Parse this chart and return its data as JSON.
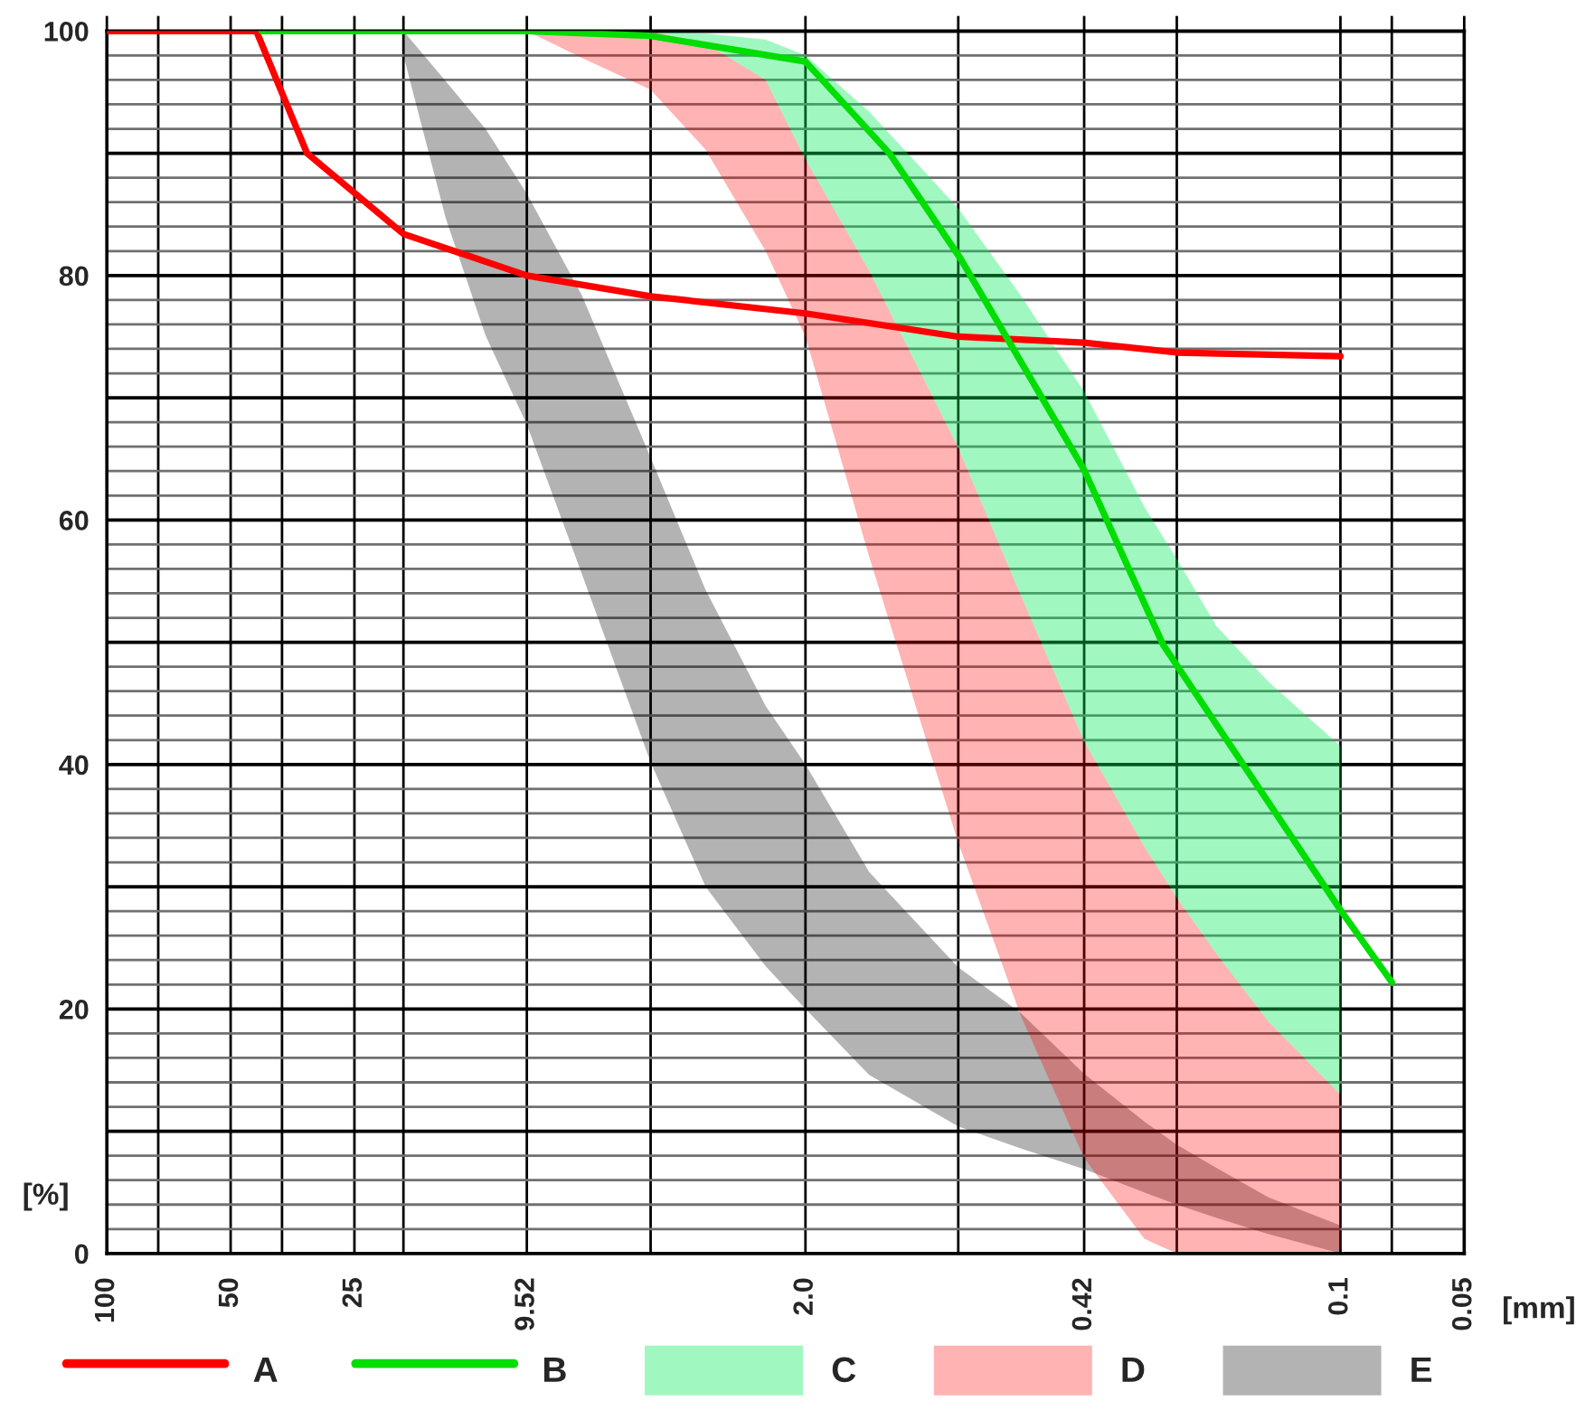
{
  "chart_data": {
    "type": "line",
    "xlabel": "[mm]",
    "ylabel": "[%]",
    "log": "x",
    "grid": true,
    "legend": "bottom",
    "xlim": [
      100,
      0.05
    ],
    "ylim": [
      0,
      100
    ],
    "xticks": [
      100,
      {
        "value": 75,
        "label": null
      },
      50,
      {
        "value": 37.5,
        "label": null
      },
      25,
      {
        "value": 19,
        "label": null
      },
      {
        "value": 9.52,
        "label": "9.52"
      },
      {
        "value": 4.76,
        "label": null
      },
      {
        "value": 2,
        "label": "2.0"
      },
      {
        "value": 0.85,
        "label": null
      },
      {
        "value": 0.42,
        "label": "0.42"
      },
      {
        "value": 0.25,
        "label": null
      },
      {
        "value": 0.1,
        "label": "0.1"
      },
      {
        "value": 0.075,
        "label": null
      },
      {
        "value": 0.05,
        "label": "0.05"
      }
    ],
    "yticks": [
      0,
      {
        "value": 2,
        "label": null
      },
      {
        "value": 4,
        "label": null
      },
      {
        "value": 6,
        "label": null
      },
      {
        "value": 8,
        "label": null
      },
      {
        "value": 10,
        "label": null
      },
      {
        "value": 12,
        "label": null
      },
      {
        "value": 14,
        "label": null
      },
      {
        "value": 16,
        "label": null
      },
      {
        "value": 18,
        "label": null
      },
      20,
      {
        "value": 22,
        "label": null
      },
      {
        "value": 24,
        "label": null
      },
      {
        "value": 26,
        "label": null
      },
      {
        "value": 28,
        "label": null
      },
      {
        "value": 30,
        "label": null
      },
      {
        "value": 32,
        "label": null
      },
      {
        "value": 34,
        "label": null
      },
      {
        "value": 36,
        "label": null
      },
      {
        "value": 38,
        "label": null
      },
      40,
      {
        "value": 42,
        "label": null
      },
      {
        "value": 44,
        "label": null
      },
      {
        "value": 46,
        "label": null
      },
      {
        "value": 48,
        "label": null
      },
      {
        "value": 50,
        "label": null
      },
      {
        "value": 52,
        "label": null
      },
      {
        "value": 54,
        "label": null
      },
      {
        "value": 56,
        "label": null
      },
      {
        "value": 58,
        "label": null
      },
      60,
      {
        "value": 62,
        "label": null
      },
      {
        "value": 64,
        "label": null
      },
      {
        "value": 66,
        "label": null
      },
      {
        "value": 68,
        "label": null
      },
      {
        "value": 70,
        "label": null
      },
      {
        "value": 72,
        "label": null
      },
      {
        "value": 74,
        "label": null
      },
      {
        "value": 76,
        "label": null
      },
      {
        "value": 78,
        "label": null
      },
      80,
      {
        "value": 82,
        "label": null
      },
      {
        "value": 84,
        "label": null
      },
      {
        "value": 86,
        "label": null
      },
      {
        "value": 88,
        "label": null
      },
      {
        "value": 90,
        "label": null
      },
      {
        "value": 92,
        "label": null
      },
      {
        "value": 94,
        "label": null
      },
      {
        "value": 96,
        "label": null
      },
      {
        "value": 98,
        "label": null
      },
      100
    ],
    "series": [
      {
        "name": "A",
        "color": "#ff0000",
        "x": [
          100,
          43.3,
          32.6,
          19,
          9.52,
          4.76,
          2.0,
          0.85,
          0.42,
          0.25,
          0.1
        ],
        "values": [
          100,
          100,
          90.0,
          83.4,
          80.0,
          78.3,
          76.9,
          75.0,
          74.5,
          73.7,
          73.4
        ]
      },
      {
        "name": "B",
        "color": "#00dd00",
        "x": [
          42,
          9.52,
          4.76,
          2.0,
          1.25,
          0.84,
          0.42,
          0.27,
          0.1,
          0.075
        ],
        "values": [
          100,
          100,
          99.6,
          97.5,
          90.0,
          81.4,
          64.1,
          49.8,
          28.1,
          22.2
        ]
      },
      {
        "name": "C",
        "type": "area",
        "color": "#a0f8c0",
        "x": [
          7,
          4.76,
          3.5,
          2.5,
          2.0,
          1.4,
          0.85,
          0.6,
          0.42,
          0.3,
          0.25,
          0.2,
          0.15,
          0.1
        ],
        "values": [
          null,
          null,
          null,
          null,
          null,
          null,
          null,
          null,
          null,
          null,
          null,
          null,
          null,
          null
        ],
        "lower": [
          100,
          100,
          99.0,
          96.0,
          89.5,
          80.4,
          65.9,
          53.9,
          41.9,
          33.3,
          29.1,
          24.5,
          19.0,
          13.0
        ],
        "upper": [
          100,
          100,
          99.8,
          99.3,
          98.0,
          93.4,
          85.5,
          78.4,
          70.5,
          61.1,
          56.8,
          51.3,
          46.8,
          41.5
        ]
      },
      {
        "name": "D",
        "type": "area",
        "color": "#ffb3b3",
        "x": [
          9.52,
          7,
          4.76,
          3.5,
          2.5,
          2.0,
          1.4,
          0.85,
          0.6,
          0.42,
          0.3,
          0.25,
          0.2,
          0.15,
          0.1
        ],
        "values": [
          null,
          null,
          null,
          null,
          null,
          null,
          null,
          null,
          null,
          null,
          null,
          null,
          null,
          null,
          null
        ],
        "lower": [
          100,
          97.8,
          95.2,
          90.3,
          82.0,
          75.0,
          57.0,
          33.6,
          19.5,
          7.8,
          1.2,
          0,
          0,
          0,
          0
        ],
        "upper": [
          100,
          100,
          100,
          99.0,
          96.0,
          89.5,
          80.4,
          65.9,
          53.9,
          41.9,
          33.3,
          29.1,
          24.5,
          19.0,
          13.0
        ]
      },
      {
        "name": "E",
        "type": "area",
        "color": "#b3b3b3",
        "x": [
          19,
          15,
          12,
          9.52,
          7,
          4.76,
          3.5,
          2.5,
          2.0,
          1.4,
          0.85,
          0.6,
          0.42,
          0.3,
          0.25,
          0.2,
          0.15,
          0.1
        ],
        "values": [
          null,
          null,
          null,
          null,
          null,
          null,
          null,
          null,
          null,
          null,
          null,
          null,
          null,
          null,
          null,
          null,
          null,
          null
        ],
        "lower": [
          98,
          84.7,
          75.1,
          67.8,
          55.6,
          40.2,
          30.0,
          23.5,
          20.0,
          14.6,
          10.4,
          8.6,
          6.9,
          5.0,
          4.0,
          2.9,
          1.6,
          0
        ],
        "upper": [
          100,
          95.9,
          92.0,
          86.7,
          78.4,
          65.1,
          54.3,
          44.8,
          40.0,
          31.2,
          23.4,
          19.7,
          14.7,
          10.8,
          8.9,
          7.0,
          4.6,
          2.3
        ]
      }
    ]
  }
}
